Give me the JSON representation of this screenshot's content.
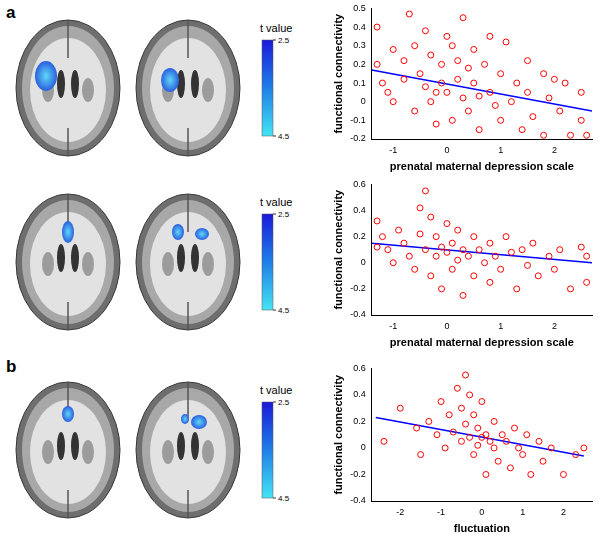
{
  "panel_labels": [
    "a",
    "b"
  ],
  "colorbars": [
    {
      "title": "t value",
      "range": [
        2.5,
        4.5
      ],
      "ticks": [
        2.5,
        4.5
      ]
    },
    {
      "title": "t value",
      "range": [
        2.5,
        4.5
      ],
      "ticks": [
        2.5,
        4.5
      ]
    },
    {
      "title": "t value",
      "range": [
        2.5,
        4.5
      ],
      "ticks": [
        2.5,
        4.5
      ]
    }
  ],
  "chart_data": [
    {
      "type": "scatter",
      "x_label": "prenatal maternal depression scale",
      "y_label": "functional connectivity",
      "xlim": [
        -1.4,
        2.7
      ],
      "xticks": [
        -1,
        0,
        1,
        2
      ],
      "ylim": [
        -0.2,
        0.5
      ],
      "yticks": [
        -0.2,
        -0.1,
        0,
        0.1,
        0.2,
        0.3,
        0.4,
        0.5
      ],
      "grid": false,
      "series": [
        {
          "type": "scatter",
          "color": "#ff0000",
          "marker": "circle",
          "x": [
            -1.3,
            -1.3,
            -1.2,
            -1.1,
            -1.0,
            -1.0,
            -0.8,
            -0.8,
            -0.7,
            -0.6,
            -0.6,
            -0.5,
            -0.4,
            -0.4,
            -0.3,
            -0.3,
            -0.2,
            -0.2,
            -0.1,
            -0.1,
            0.0,
            0.0,
            0.1,
            0.1,
            0.2,
            0.2,
            0.3,
            0.3,
            0.4,
            0.4,
            0.5,
            0.5,
            0.6,
            0.6,
            0.7,
            0.8,
            0.8,
            0.9,
            1.0,
            1.0,
            1.1,
            1.2,
            1.3,
            1.4,
            1.5,
            1.5,
            1.6,
            1.8,
            1.8,
            1.9,
            2.0,
            2.1,
            2.2,
            2.3,
            2.5,
            2.6,
            2.5
          ],
          "values": [
            0.4,
            0.2,
            0.1,
            0.05,
            0.28,
            0.0,
            0.22,
            0.12,
            0.47,
            0.3,
            -0.05,
            0.15,
            0.38,
            0.08,
            0.25,
            0.0,
            0.05,
            -0.12,
            0.2,
            0.1,
            0.35,
            0.05,
            0.3,
            -0.1,
            0.22,
            0.12,
            0.45,
            0.02,
            0.18,
            -0.05,
            0.28,
            0.1,
            0.03,
            -0.15,
            0.2,
            0.35,
            0.05,
            -0.02,
            0.15,
            -0.1,
            0.32,
            0.0,
            0.1,
            -0.15,
            0.22,
            0.05,
            -0.08,
            0.15,
            -0.18,
            0.02,
            0.12,
            -0.05,
            0.1,
            -0.18,
            -0.1,
            -0.18,
            0.05
          ]
        },
        {
          "type": "line",
          "color": "#0000ff",
          "x": [
            -1.4,
            2.7
          ],
          "values": [
            0.17,
            -0.05
          ]
        }
      ]
    },
    {
      "type": "scatter",
      "x_label": "prenatal maternal depression scale",
      "y_label": "functional connectivity",
      "xlim": [
        -1.4,
        2.7
      ],
      "xticks": [
        -1,
        0,
        1,
        2
      ],
      "ylim": [
        -0.4,
        0.6
      ],
      "yticks": [
        -0.4,
        -0.2,
        0,
        0.2,
        0.4,
        0.6
      ],
      "grid": false,
      "series": [
        {
          "type": "scatter",
          "color": "#ff0000",
          "marker": "circle",
          "x": [
            -1.3,
            -1.3,
            -1.2,
            -1.1,
            -1.0,
            -0.9,
            -0.8,
            -0.7,
            -0.6,
            -0.5,
            -0.5,
            -0.4,
            -0.4,
            -0.3,
            -0.3,
            -0.2,
            -0.2,
            -0.1,
            -0.1,
            0.0,
            0.0,
            0.1,
            0.1,
            0.2,
            0.2,
            0.3,
            0.3,
            0.4,
            0.5,
            0.5,
            0.6,
            0.7,
            0.8,
            0.8,
            0.9,
            1.0,
            1.1,
            1.2,
            1.3,
            1.4,
            1.5,
            1.6,
            1.7,
            1.9,
            2.0,
            2.1,
            2.3,
            2.5,
            2.6,
            2.6
          ],
          "values": [
            0.32,
            0.12,
            0.2,
            0.1,
            0.0,
            0.25,
            0.15,
            0.05,
            -0.05,
            0.42,
            0.22,
            0.55,
            0.1,
            0.35,
            -0.1,
            0.2,
            0.05,
            0.12,
            -0.2,
            0.3,
            0.08,
            0.15,
            -0.05,
            0.25,
            0.02,
            0.1,
            -0.25,
            0.05,
            0.2,
            -0.1,
            0.1,
            0.0,
            0.15,
            -0.15,
            0.05,
            -0.05,
            0.2,
            0.08,
            -0.2,
            0.1,
            -0.02,
            0.15,
            -0.1,
            0.05,
            -0.05,
            0.1,
            -0.2,
            0.12,
            -0.15,
            0.05
          ]
        },
        {
          "type": "line",
          "color": "#0000ff",
          "x": [
            -1.4,
            2.7
          ],
          "values": [
            0.15,
            0.0
          ]
        }
      ]
    },
    {
      "type": "scatter",
      "x_label": "fluctuation",
      "y_label": "functional connectivity",
      "xlim": [
        -2.7,
        2.7
      ],
      "xticks": [
        -2,
        -1,
        0,
        1,
        2
      ],
      "ylim": [
        -0.4,
        0.6
      ],
      "yticks": [
        -0.4,
        -0.2,
        0,
        0.2,
        0.4,
        0.6
      ],
      "grid": false,
      "series": [
        {
          "type": "scatter",
          "color": "#ff0000",
          "marker": "circle",
          "x": [
            -2.4,
            -2.0,
            -1.6,
            -1.5,
            -1.3,
            -1.1,
            -1.0,
            -0.9,
            -0.8,
            -0.7,
            -0.6,
            -0.5,
            -0.5,
            -0.4,
            -0.4,
            -0.3,
            -0.3,
            -0.2,
            -0.2,
            -0.1,
            -0.1,
            0.0,
            0.0,
            0.1,
            0.1,
            0.2,
            0.3,
            0.3,
            0.4,
            0.5,
            0.6,
            0.7,
            0.8,
            0.9,
            1.0,
            1.1,
            1.2,
            1.4,
            1.5,
            1.7,
            2.0,
            2.3,
            2.5
          ],
          "values": [
            0.05,
            0.3,
            0.15,
            -0.05,
            0.2,
            0.1,
            0.35,
            0.0,
            0.25,
            0.12,
            0.45,
            0.3,
            0.05,
            0.55,
            0.18,
            0.4,
            0.08,
            0.25,
            -0.05,
            0.15,
            0.02,
            0.35,
            0.08,
            0.1,
            -0.2,
            0.05,
            0.2,
            0.0,
            -0.1,
            0.1,
            0.05,
            -0.15,
            0.15,
            0.0,
            -0.05,
            0.1,
            -0.2,
            0.05,
            -0.1,
            0.0,
            -0.2,
            -0.05,
            0.0
          ]
        },
        {
          "type": "line",
          "color": "#0000ff",
          "x": [
            -2.6,
            2.5
          ],
          "values": [
            0.23,
            -0.06
          ]
        }
      ]
    }
  ]
}
